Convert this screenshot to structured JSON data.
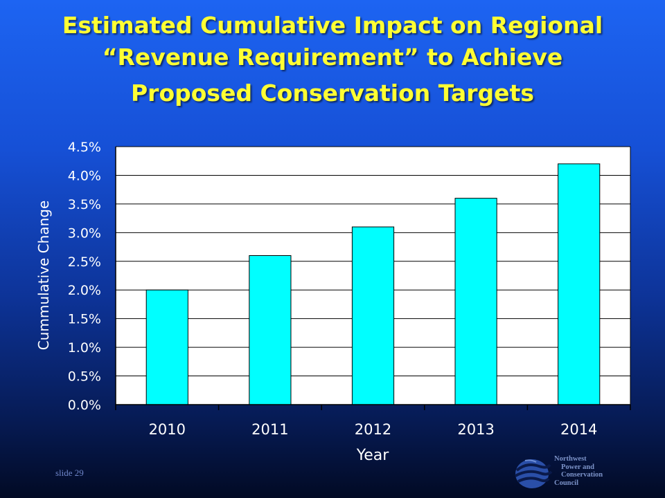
{
  "title_lines": [
    "Estimated Cumulative Impact on Regional",
    "“Revenue Requirement” to Achieve",
    "Proposed Conservation Targets"
  ],
  "slide_label": "slide 29",
  "logo": {
    "icon": "council-swirl-logo",
    "lines": [
      "Northwest",
      "Power and",
      "Conservation",
      "Council"
    ]
  },
  "colors": {
    "bar_fill": "#00ffff",
    "plot_background": "#ffffff",
    "title_text": "#ffff33"
  },
  "chart_data": {
    "type": "bar",
    "categories": [
      "2010",
      "2011",
      "2012",
      "2013",
      "2014"
    ],
    "values": [
      0.02,
      0.026,
      0.031,
      0.036,
      0.042
    ],
    "xlabel": "Year",
    "ylabel": "Cummulative Change",
    "ylim": [
      0,
      0.045
    ],
    "yticks": [
      "0.0%",
      "0.5%",
      "1.0%",
      "1.5%",
      "2.0%",
      "2.5%",
      "3.0%",
      "3.5%",
      "4.0%",
      "4.5%"
    ],
    "grid": true,
    "legend": "none"
  }
}
